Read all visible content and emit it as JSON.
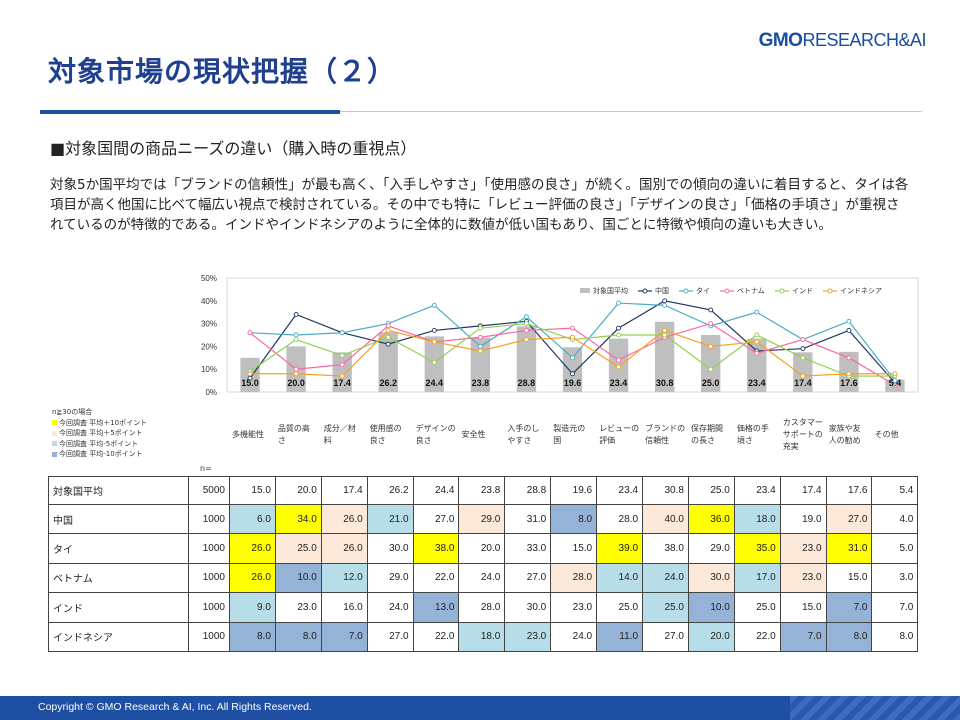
{
  "page": {
    "title": "対象市場の現状把握（２）",
    "logo_gmo": "GMO",
    "logo_rest": "RESEARCH&AI",
    "subheading": "■対象国間の商品ニーズの違い（購入時の重視点）",
    "body": "対象5か国平均では「ブランドの信頼性」が最も高く、「入手しやすさ」「使用感の良さ」が続く。国別での傾向の違いに着目すると、タイは各項目が高く他国に比べて幅広い視点で検討されている。その中でも特に「レビュー評価の良さ」「デザインの良さ」「価格の手頃さ」が重視されているのが特徴的である。インドやインドネシアのように全体的に数値が低い国もあり、国ごとに特徴や傾向の違いも大きい。",
    "footer": "Copyright © GMO Research & AI, Inc. All Rights Reserved."
  },
  "legend_note": {
    "title": "n≧30の場合",
    "items": [
      {
        "label": "今回調査 平均＋10ポイント",
        "color": "#ffff00"
      },
      {
        "label": "今回調査 平均＋5ポイント",
        "color": "#fde9d9"
      },
      {
        "label": "今回調査 平均-5ポイント",
        "color": "#b7dee8"
      },
      {
        "label": "今回調査 平均-10ポイント",
        "color": "#95b3d7"
      }
    ],
    "n_label": "n="
  },
  "chart_data": {
    "type": "bar",
    "categories": [
      "多機能性",
      "品質の高さ",
      "成分／材料",
      "使用感の良さ",
      "デザインの良さ",
      "安全性",
      "入手のしやすさ",
      "製造元の国",
      "レビューの評価",
      "ブランドの信頼性",
      "保存期間の長さ",
      "価格の手頃さ",
      "カスタマーサポートの充実",
      "家族や友人の勧め",
      "その他"
    ],
    "category_lines": [
      [
        "多機能性"
      ],
      [
        "品質の高",
        "さ"
      ],
      [
        "成分／材",
        "料"
      ],
      [
        "使用感の",
        "良さ"
      ],
      [
        "デザインの",
        "良さ"
      ],
      [
        "安全性"
      ],
      [
        "入手のし",
        "やすさ"
      ],
      [
        "製造元の",
        "国"
      ],
      [
        "レビューの",
        "評価"
      ],
      [
        "ブランドの",
        "信頼性"
      ],
      [
        "保存期間",
        "の長さ"
      ],
      [
        "価格の手",
        "頃さ"
      ],
      [
        "カスタマー",
        "サポートの",
        "充実"
      ],
      [
        "家族や友",
        "人の勧め"
      ],
      [
        "その他"
      ]
    ],
    "ylim": [
      0,
      50
    ],
    "yticks": [
      "0%",
      "10%",
      "20%",
      "30%",
      "40%",
      "50%"
    ],
    "bar_series": {
      "name": "対象国平均",
      "color": "#bfbfbf",
      "values": [
        15.0,
        20.0,
        17.4,
        26.2,
        24.4,
        23.8,
        28.8,
        19.6,
        23.4,
        30.8,
        25.0,
        23.4,
        17.4,
        17.6,
        5.4
      ],
      "labels": [
        "15.0",
        "20.0",
        "17.4",
        "26.2",
        "24.4",
        "23.8",
        "28.8",
        "19.6",
        "23.4",
        "30.8",
        "25.0",
        "23.4",
        "17.4",
        "17.6",
        "5.4"
      ]
    },
    "line_series": [
      {
        "name": "中国",
        "color": "#1f3864",
        "values": [
          6.0,
          34.0,
          26.0,
          21.0,
          27.0,
          29.0,
          31.0,
          8.0,
          28.0,
          40.0,
          36.0,
          18.0,
          19.0,
          27.0,
          4.0
        ]
      },
      {
        "name": "タイ",
        "color": "#4bacc6",
        "values": [
          26.0,
          25.0,
          26.0,
          30.0,
          38.0,
          20.0,
          33.0,
          15.0,
          39.0,
          38.0,
          29.0,
          35.0,
          23.0,
          31.0,
          5.0
        ]
      },
      {
        "name": "ベトナム",
        "color": "#ff66a3",
        "values": [
          26.0,
          10.0,
          12.0,
          29.0,
          22.0,
          24.0,
          27.0,
          28.0,
          14.0,
          24.0,
          30.0,
          17.0,
          23.0,
          15.0,
          3.0
        ]
      },
      {
        "name": "インド",
        "color": "#92d050",
        "values": [
          9.0,
          23.0,
          16.0,
          24.0,
          13.0,
          28.0,
          30.0,
          23.0,
          25.0,
          25.0,
          10.0,
          25.0,
          15.0,
          7.0,
          7.0
        ]
      },
      {
        "name": "インドネシア",
        "color": "#f4a21f",
        "values": [
          8.0,
          8.0,
          7.0,
          27.0,
          22.0,
          18.0,
          23.0,
          24.0,
          11.0,
          27.0,
          20.0,
          22.0,
          7.0,
          8.0,
          8.0
        ]
      }
    ],
    "legend_position": "top-right"
  },
  "table": {
    "rows": [
      {
        "name": "対象国平均",
        "n": "5000",
        "values": [
          "15.0",
          "20.0",
          "17.4",
          "26.2",
          "24.4",
          "23.8",
          "28.8",
          "19.6",
          "23.4",
          "30.8",
          "25.0",
          "23.4",
          "17.4",
          "17.6",
          "5.4"
        ],
        "colors": [
          "",
          "",
          "",
          "",
          "",
          "",
          "",
          "",
          "",
          "",
          "",
          "",
          "",
          "",
          ""
        ]
      },
      {
        "name": "中国",
        "n": "1000",
        "values": [
          "6.0",
          "34.0",
          "26.0",
          "21.0",
          "27.0",
          "29.0",
          "31.0",
          "8.0",
          "28.0",
          "40.0",
          "36.0",
          "18.0",
          "19.0",
          "27.0",
          "4.0"
        ],
        "colors": [
          "#b7dee8",
          "#ffff00",
          "#fde9d9",
          "#b7dee8",
          "",
          "#fde9d9",
          "",
          "#95b3d7",
          "",
          "#fde9d9",
          "#ffff00",
          "#b7dee8",
          "",
          "#fde9d9",
          ""
        ]
      },
      {
        "name": "タイ",
        "n": "1000",
        "values": [
          "26.0",
          "25.0",
          "26.0",
          "30.0",
          "38.0",
          "20.0",
          "33.0",
          "15.0",
          "39.0",
          "38.0",
          "29.0",
          "35.0",
          "23.0",
          "31.0",
          "5.0"
        ],
        "colors": [
          "#ffff00",
          "#fde9d9",
          "#fde9d9",
          "",
          "#ffff00",
          "",
          "",
          "",
          "#ffff00",
          "",
          "",
          "#ffff00",
          "#fde9d9",
          "#ffff00",
          ""
        ]
      },
      {
        "name": "ベトナム",
        "n": "1000",
        "values": [
          "26.0",
          "10.0",
          "12.0",
          "29.0",
          "22.0",
          "24.0",
          "27.0",
          "28.0",
          "14.0",
          "24.0",
          "30.0",
          "17.0",
          "23.0",
          "15.0",
          "3.0"
        ],
        "colors": [
          "#ffff00",
          "#95b3d7",
          "#b7dee8",
          "",
          "",
          "",
          "",
          "#fde9d9",
          "#b7dee8",
          "#b7dee8",
          "#fde9d9",
          "#b7dee8",
          "#fde9d9",
          "",
          ""
        ]
      },
      {
        "name": "インド",
        "n": "1000",
        "values": [
          "9.0",
          "23.0",
          "16.0",
          "24.0",
          "13.0",
          "28.0",
          "30.0",
          "23.0",
          "25.0",
          "25.0",
          "10.0",
          "25.0",
          "15.0",
          "7.0",
          "7.0"
        ],
        "colors": [
          "#b7dee8",
          "",
          "",
          "",
          "#95b3d7",
          "",
          "",
          "",
          "",
          "#b7dee8",
          "#95b3d7",
          "",
          "",
          "#95b3d7",
          ""
        ]
      },
      {
        "name": "インドネシア",
        "n": "1000",
        "values": [
          "8.0",
          "8.0",
          "7.0",
          "27.0",
          "22.0",
          "18.0",
          "23.0",
          "24.0",
          "11.0",
          "27.0",
          "20.0",
          "22.0",
          "7.0",
          "8.0",
          "8.0"
        ],
        "colors": [
          "#95b3d7",
          "#95b3d7",
          "#95b3d7",
          "",
          "",
          "#b7dee8",
          "#b7dee8",
          "",
          "#95b3d7",
          "",
          "#b7dee8",
          "",
          "#95b3d7",
          "#95b3d7",
          ""
        ]
      }
    ]
  }
}
